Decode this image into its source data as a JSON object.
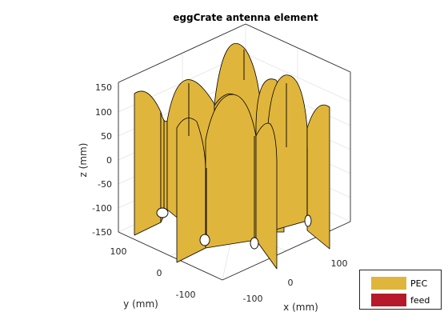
{
  "figure": {
    "title": "eggCrate antenna element",
    "z_axis": {
      "label": "z (mm)",
      "ticks": [
        "150",
        "100",
        "50",
        "0",
        "-50",
        "-100",
        "-150"
      ]
    },
    "y_axis": {
      "label": "y (mm)",
      "ticks": [
        "100",
        "0",
        "-100"
      ]
    },
    "x_axis": {
      "label": "x (mm)",
      "ticks": [
        "-100",
        "0",
        "100"
      ]
    }
  },
  "legend": {
    "items": [
      {
        "label": "PEC",
        "color": "#E0B53C"
      },
      {
        "label": "feed",
        "color": "#B5192A"
      }
    ]
  },
  "colors": {
    "plate": "#E0B53C",
    "axes": "#262626"
  }
}
